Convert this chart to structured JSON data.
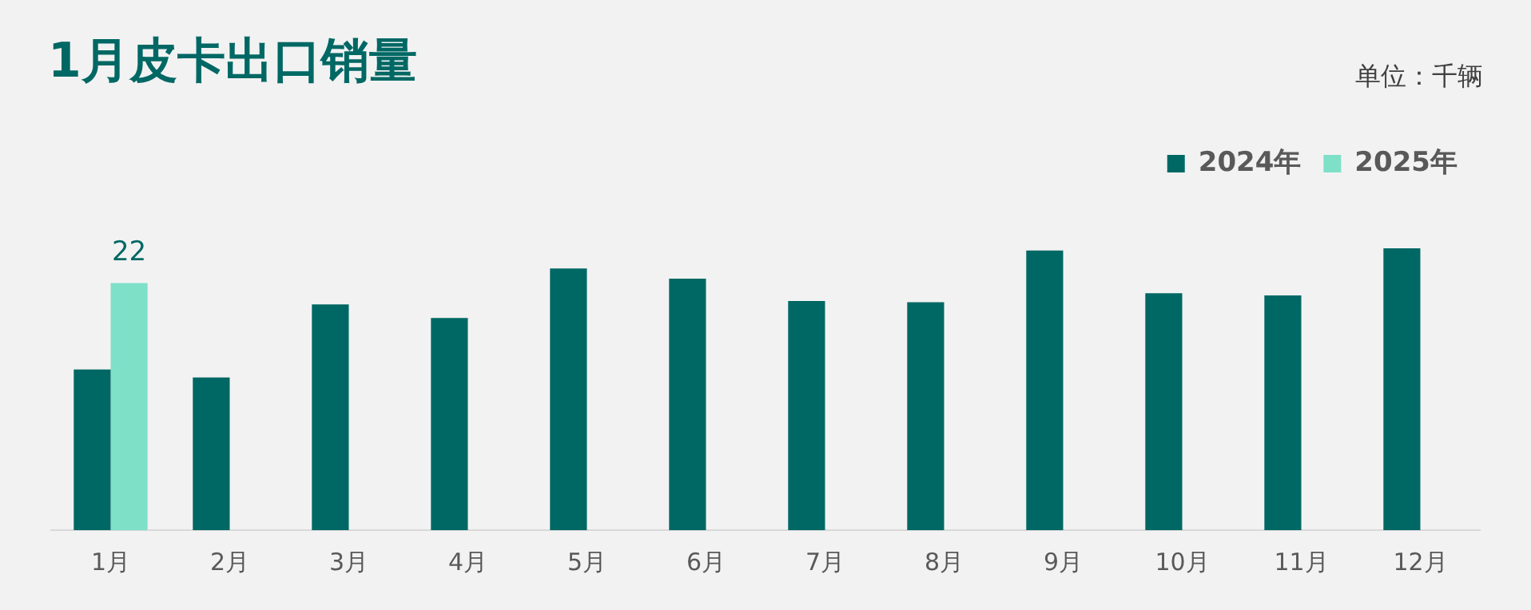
{
  "chart_data": {
    "type": "bar",
    "title": "1月皮卡出口销量",
    "subtitle": "单位：千辆",
    "categories": [
      "1月",
      "2月",
      "3月",
      "4月",
      "5月",
      "6月",
      "7月",
      "8月",
      "9月",
      "10月",
      "11月",
      "12月"
    ],
    "series": [
      {
        "name": "2024年",
        "color": "#006864",
        "values": [
          14.3,
          13.6,
          20.1,
          18.9,
          23.3,
          22.4,
          20.4,
          20.3,
          24.9,
          21.1,
          20.9,
          25.1
        ]
      },
      {
        "name": "2025年",
        "color": "#7fe0c8",
        "values": [
          22,
          null,
          null,
          null,
          null,
          null,
          null,
          null,
          null,
          null,
          null,
          null
        ],
        "value_labels": [
          "22",
          null,
          null,
          null,
          null,
          null,
          null,
          null,
          null,
          null,
          null,
          null
        ]
      }
    ],
    "legend": "top right",
    "grid": false
  }
}
